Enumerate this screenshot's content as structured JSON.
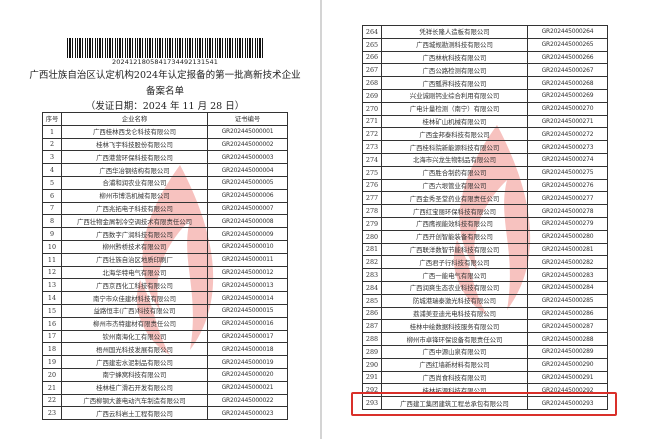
{
  "left_page": {
    "barcode_number": "20241218058417344921315​41",
    "title_line1": "广西壮族自治区认定机构2024年认定报备的第一批高新技术企业",
    "title_line2": "备案名单",
    "issue_date": "（发证日期：2024 年 11 月 28 日）",
    "headers": [
      "序号",
      "企业名称",
      "证书编号"
    ],
    "rows": [
      [
        "1",
        "广西桂林西戈仑科技有限公司",
        "GR202445000001"
      ],
      [
        "2",
        "桂林飞宇科技股份有限公司",
        "GR202445000002"
      ],
      [
        "3",
        "广西港营环保科技有限公司",
        "GR202445000003"
      ],
      [
        "4",
        "广西华冶钢结构有限公司",
        "GR202445000004"
      ],
      [
        "5",
        "合浦和润农业有限公司",
        "GR202445000005"
      ],
      [
        "6",
        "柳州市博浩机械有限公司",
        "GR202445000006"
      ],
      [
        "7",
        "广西兆拓电子科技有限公司",
        "GR202445000007"
      ],
      [
        "8",
        "广西壮物金屑制冷空调技术有限责任公司",
        "GR202445000008"
      ],
      [
        "9",
        "广西数字广润科技有限公司",
        "GR202445000009"
      ],
      [
        "10",
        "柳州黔桥技术有限公司",
        "GR202445000010"
      ],
      [
        "11",
        "广西壮族自治区地质印刷厂",
        "GR202445000011"
      ],
      [
        "12",
        "北海华特电气有限公司",
        "GR202445000012"
      ],
      [
        "13",
        "广西京西化工科技有限公司",
        "GR202445000013"
      ],
      [
        "14",
        "南宁市众佳建材科技有限公司",
        "GR202445000014"
      ],
      [
        "15",
        "益路恒丰(广西)科技有限公司",
        "GR202445000015"
      ],
      [
        "16",
        "柳州市杰特建材有限责任公司",
        "GR202445000016"
      ],
      [
        "17",
        "钦州南海化工有限公司",
        "GR202445000017"
      ],
      [
        "18",
        "梧州国光科技发展有限公司",
        "GR202445000018"
      ],
      [
        "19",
        "广西建宏水泥制品有限公司",
        "GR202445000019"
      ],
      [
        "20",
        "南宁蜂窝科技有限公司",
        "GR202445000020"
      ],
      [
        "21",
        "桂林桂广滑石开发有限公司",
        "GR202445000021"
      ],
      [
        "22",
        "广西柳钢大菱电动汽车制造有限公司",
        "GR202445000022"
      ],
      [
        "23",
        "广西云科岩土工程有限公司",
        "GR202445000023"
      ]
    ]
  },
  "right_page": {
    "rows": [
      [
        "264",
        "凭祥长隆人造板有限公司",
        "GR202445000264"
      ],
      [
        "265",
        "广西城规勘测科技有限公司",
        "GR202445000265"
      ],
      [
        "266",
        "广西林杭科技有限公司",
        "GR202445000266"
      ],
      [
        "267",
        "广西公路检测有限公司",
        "GR202445000267"
      ],
      [
        "268",
        "广西瓢界科技有限公司",
        "GR202445000268"
      ],
      [
        "269",
        "兴业诚刚钙业综合利用有限公司",
        "GR202445000269"
      ],
      [
        "270",
        "广电计量检测（南宁）有限公司",
        "GR202445000270"
      ],
      [
        "271",
        "桂林矿山机械有限公司",
        "GR202445000271"
      ],
      [
        "272",
        "广西金邦泰科技有限公司",
        "GR202445000272"
      ],
      [
        "273",
        "广西桂科院新能源科技有限公司",
        "GR202445000273"
      ],
      [
        "274",
        "北海市兴龙生物制品有限公司",
        "GR202445000274"
      ],
      [
        "275",
        "广西胜合制药有限公司",
        "GR202445000275"
      ],
      [
        "276",
        "广西六垠管业有限公司",
        "GR202445000276"
      ],
      [
        "277",
        "广西金秀圣堂药业有限责任公司",
        "GR202445000277"
      ],
      [
        "278",
        "广西红宝丽环保科技有限公司",
        "GR202445000278"
      ],
      [
        "279",
        "广西鹰视能效科技有限公司",
        "GR202445000279"
      ],
      [
        "280",
        "广西开创智能装备有限公司",
        "GR202445000280"
      ],
      [
        "281",
        "广西联洋数智节能科技有限公司",
        "GR202445000281"
      ],
      [
        "282",
        "广西君子行科技有限公司",
        "GR202445000282"
      ],
      [
        "283",
        "广西一能电气有限公司",
        "GR202445000283"
      ],
      [
        "284",
        "广西润爽生态农业科技有限公司",
        "GR202445000284"
      ],
      [
        "285",
        "防城港瑞泰激光科技有限公司",
        "GR202445000285"
      ],
      [
        "286",
        "荔浦美亚迪光电科技有限公司",
        "GR202445000286"
      ],
      [
        "287",
        "桂林中绘数据科技服务有限公司",
        "GR202445000287"
      ],
      [
        "288",
        "柳州市卓锋环保设备有限责任公司",
        "GR202445000288"
      ],
      [
        "289",
        "广西中源山泉有限公司",
        "GR202445000289"
      ],
      [
        "290",
        "广西红墙新材料有限公司",
        "GR202445000290"
      ],
      [
        "291",
        "广西尚食科技有限公司",
        "GR202445000291"
      ],
      [
        "292",
        "桂林拓源科技有限公司",
        "GR202445000292"
      ],
      [
        "293",
        "广西建工集团建筑工程总承包有限公司",
        "GR202445000293"
      ]
    ],
    "highlighted_row": "293",
    "highlight_color": "#d9302a"
  },
  "watermark_color": "#e8453c"
}
